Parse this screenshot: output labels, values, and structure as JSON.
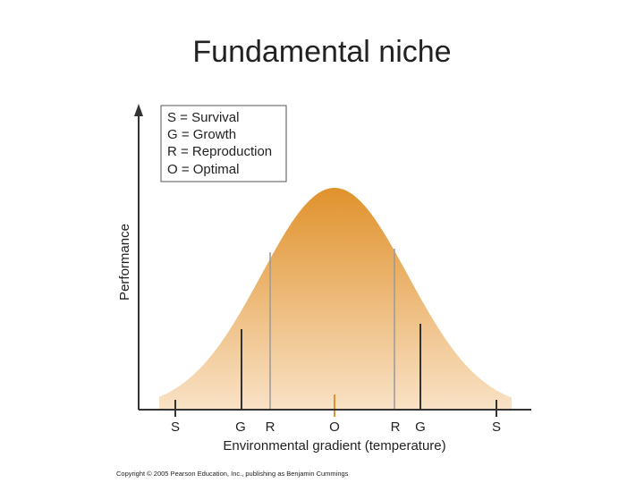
{
  "title": "Fundamental niche",
  "legend": [
    "S = Survival",
    "G = Growth",
    "R = Reproduction",
    "O = Optimal"
  ],
  "y_axis_label": "Performance",
  "x_axis_label": "Environmental gradient (temperature)",
  "gradient_labels": [
    "S",
    "G",
    "R",
    "O",
    "R",
    "G",
    "S"
  ],
  "copyright": "Copyright © 2005 Pearson Education, Inc., publishing as Benjamin Cummings"
}
